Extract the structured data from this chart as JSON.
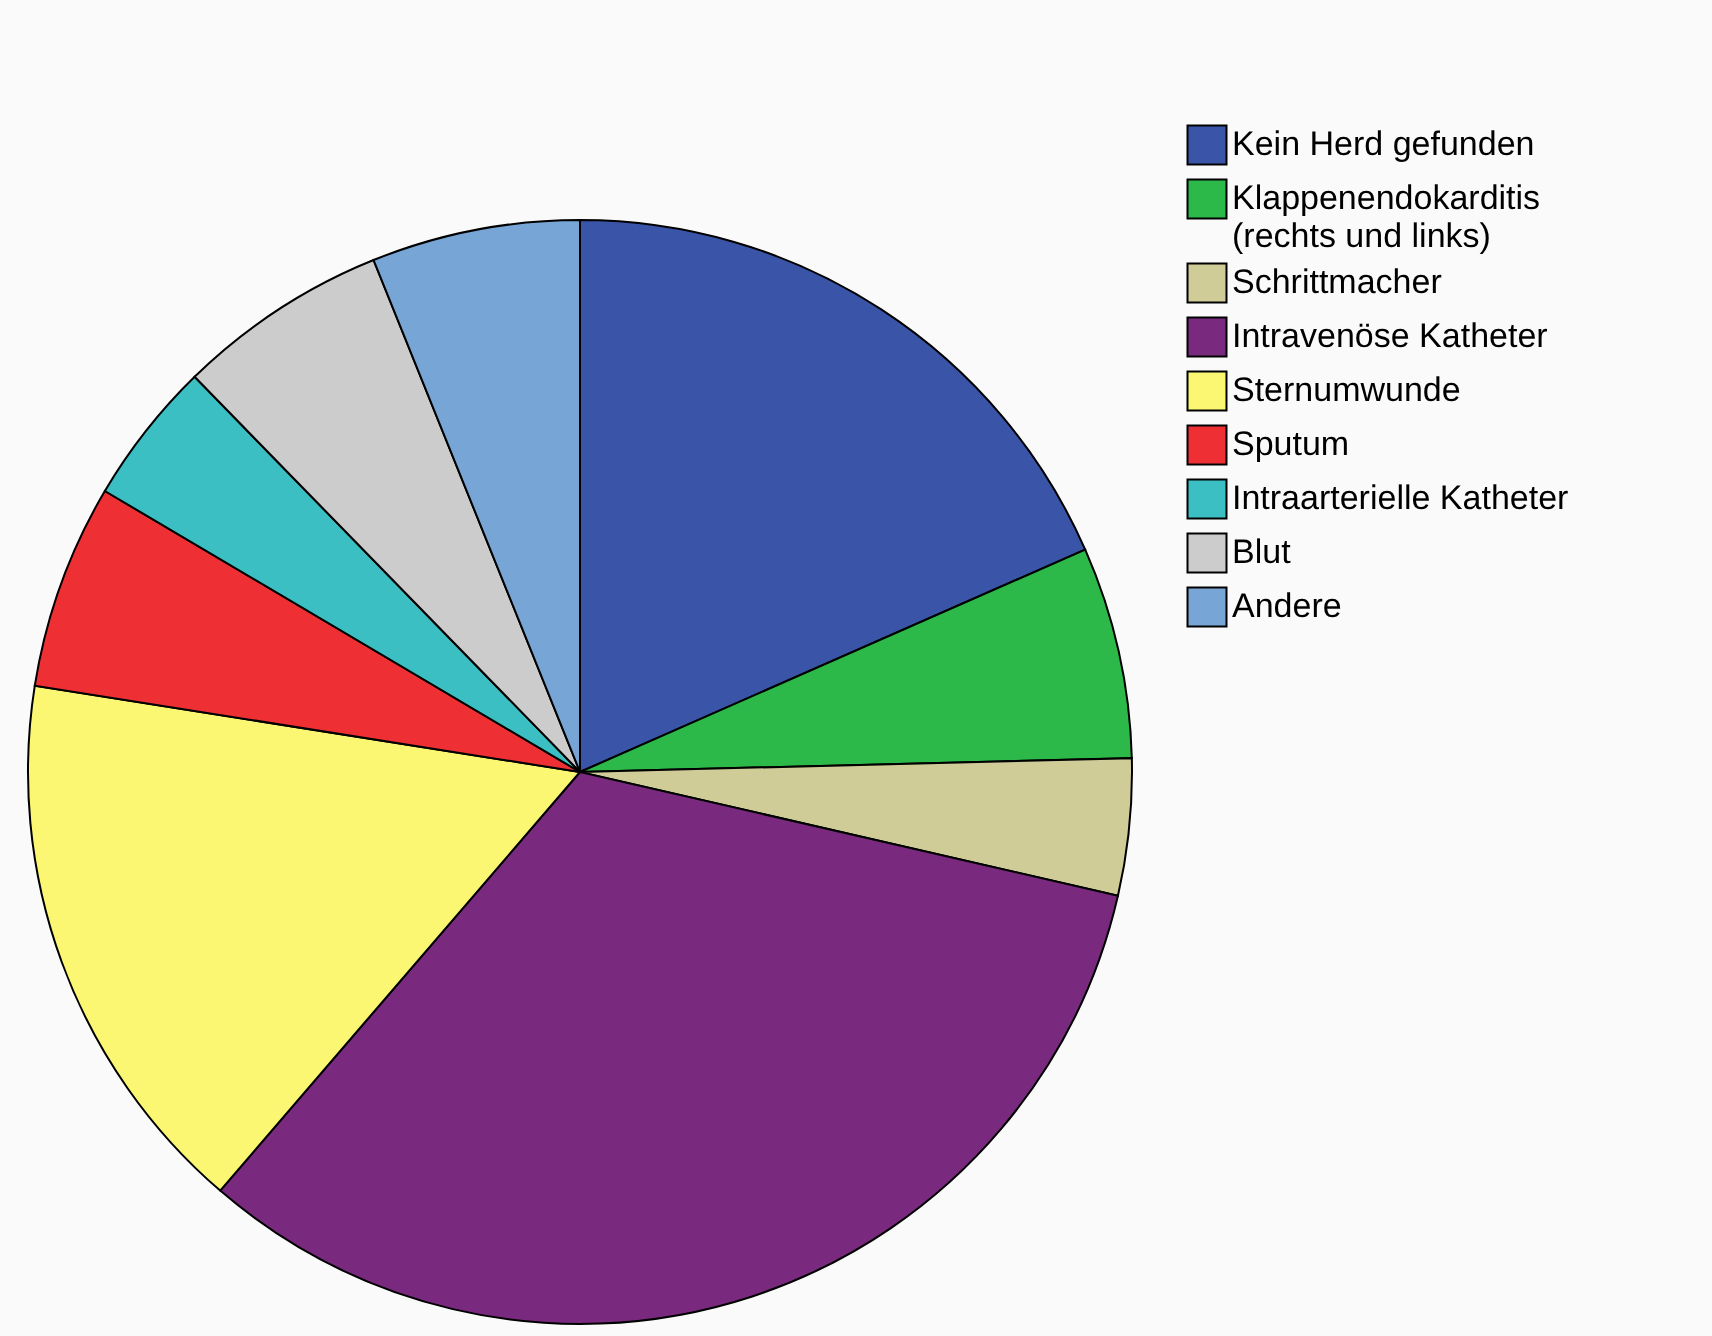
{
  "chart_data": {
    "type": "pie",
    "categories": [
      "Kein Herd gefunden",
      "Klappenendokarditis\n(rechts und links)",
      "Schrittmacher",
      "Intravenöse Katheter",
      "Sternumwunde",
      "Sputum",
      "Intraarterielle Katheter",
      "Blut",
      "Andere"
    ],
    "values": [
      18.4,
      6.2,
      4.0,
      32.7,
      16.2,
      6.0,
      4.2,
      6.2,
      6.1
    ],
    "colors": [
      "#3a55a8",
      "#2db84a",
      "#cfcc98",
      "#7a2a7e",
      "#fbf773",
      "#ee3034",
      "#3cbfc3",
      "#cccccc",
      "#76a5d6"
    ],
    "legend": "top right"
  }
}
